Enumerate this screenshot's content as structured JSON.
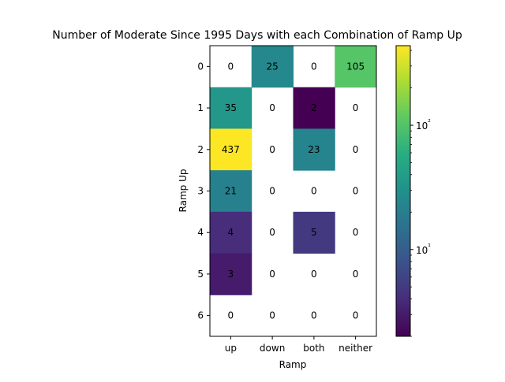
{
  "chart_data": {
    "type": "heatmap",
    "title": "Number of Moderate Since 1995 Days with each Combination of Ramp Up",
    "xlabel": "Ramp",
    "ylabel": "Ramp Up",
    "x_categories": [
      "up",
      "down",
      "both",
      "neither"
    ],
    "y_categories": [
      "0",
      "1",
      "2",
      "3",
      "4",
      "5",
      "6"
    ],
    "values": [
      [
        0,
        25,
        0,
        105
      ],
      [
        35,
        0,
        2,
        0
      ],
      [
        437,
        0,
        23,
        0
      ],
      [
        21,
        0,
        0,
        0
      ],
      [
        4,
        0,
        5,
        0
      ],
      [
        3,
        0,
        0,
        0
      ],
      [
        0,
        0,
        0,
        0
      ]
    ],
    "color_scale": "log",
    "colormap": "viridis",
    "zero_cells_blank": true,
    "colorbar": {
      "range": [
        2,
        437
      ],
      "major_ticks": [
        10,
        100
      ],
      "major_tick_labels": [
        "10¹",
        "10²"
      ]
    }
  }
}
